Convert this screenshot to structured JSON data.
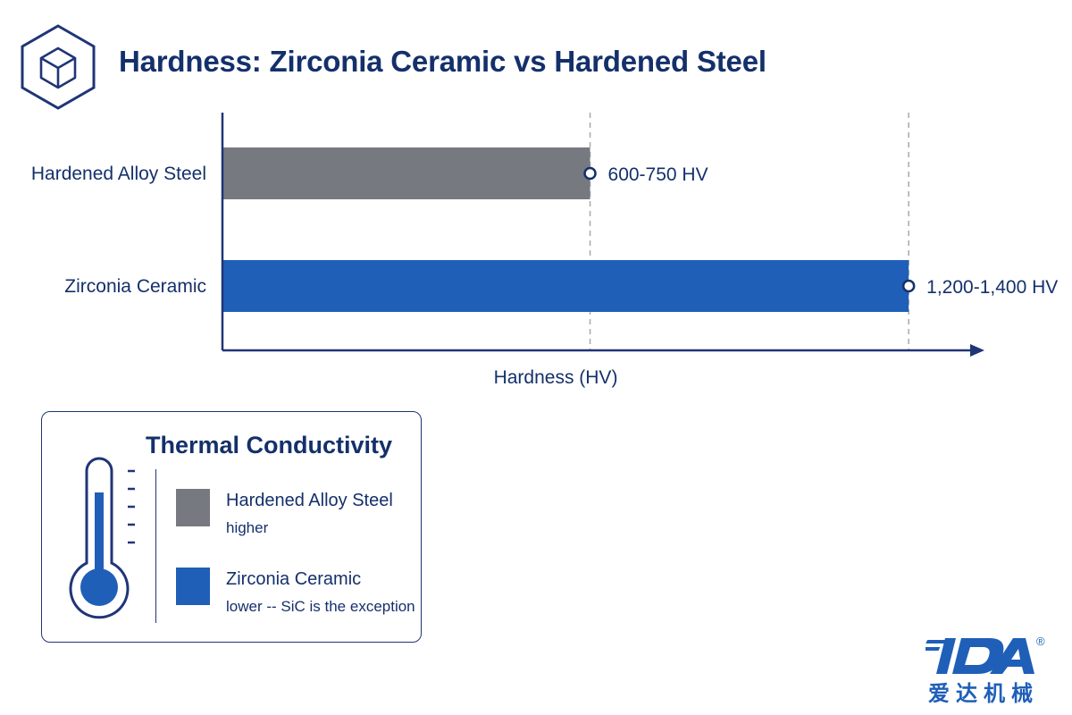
{
  "page": {
    "title": "Hardness: Zirconia Ceramic vs Hardened Steel"
  },
  "icons": {
    "header": "cube-icon",
    "legend": "thermometer-icon"
  },
  "chart_data": {
    "type": "bar",
    "orientation": "horizontal",
    "title": "Hardness: Zirconia Ceramic vs Hardened Steel",
    "xlabel": "Hardness (HV)",
    "ylabel": "",
    "categories": [
      "Hardened Alloy Steel",
      "Zirconia Ceramic"
    ],
    "values": [
      750,
      1400
    ],
    "value_labels": [
      "600-750 HV",
      "1,200-1,400 HV"
    ],
    "xlim": [
      0,
      1540
    ],
    "reference_lines": [
      750,
      1400
    ],
    "colors": [
      "#76797f",
      "#1f5fb8"
    ],
    "grid": false,
    "legend": "none"
  },
  "legend": {
    "title": "Thermal Conductivity",
    "entries": [
      {
        "name": "Hardened Alloy Steel",
        "note": "higher",
        "color": "#76797f"
      },
      {
        "name": "Zirconia Ceramic",
        "note": "lower -- SiC is the exception",
        "color": "#1f5fb8"
      }
    ]
  },
  "brand": {
    "logo_text": "IDA",
    "registered_mark": "®",
    "chinese_name": "爱达机械",
    "color": "#1f5fb8"
  },
  "colors": {
    "title_navy": "#14306b",
    "axis": "#1f3576",
    "steel_gray": "#76797f",
    "ceramic_blue": "#1f5fb8"
  }
}
